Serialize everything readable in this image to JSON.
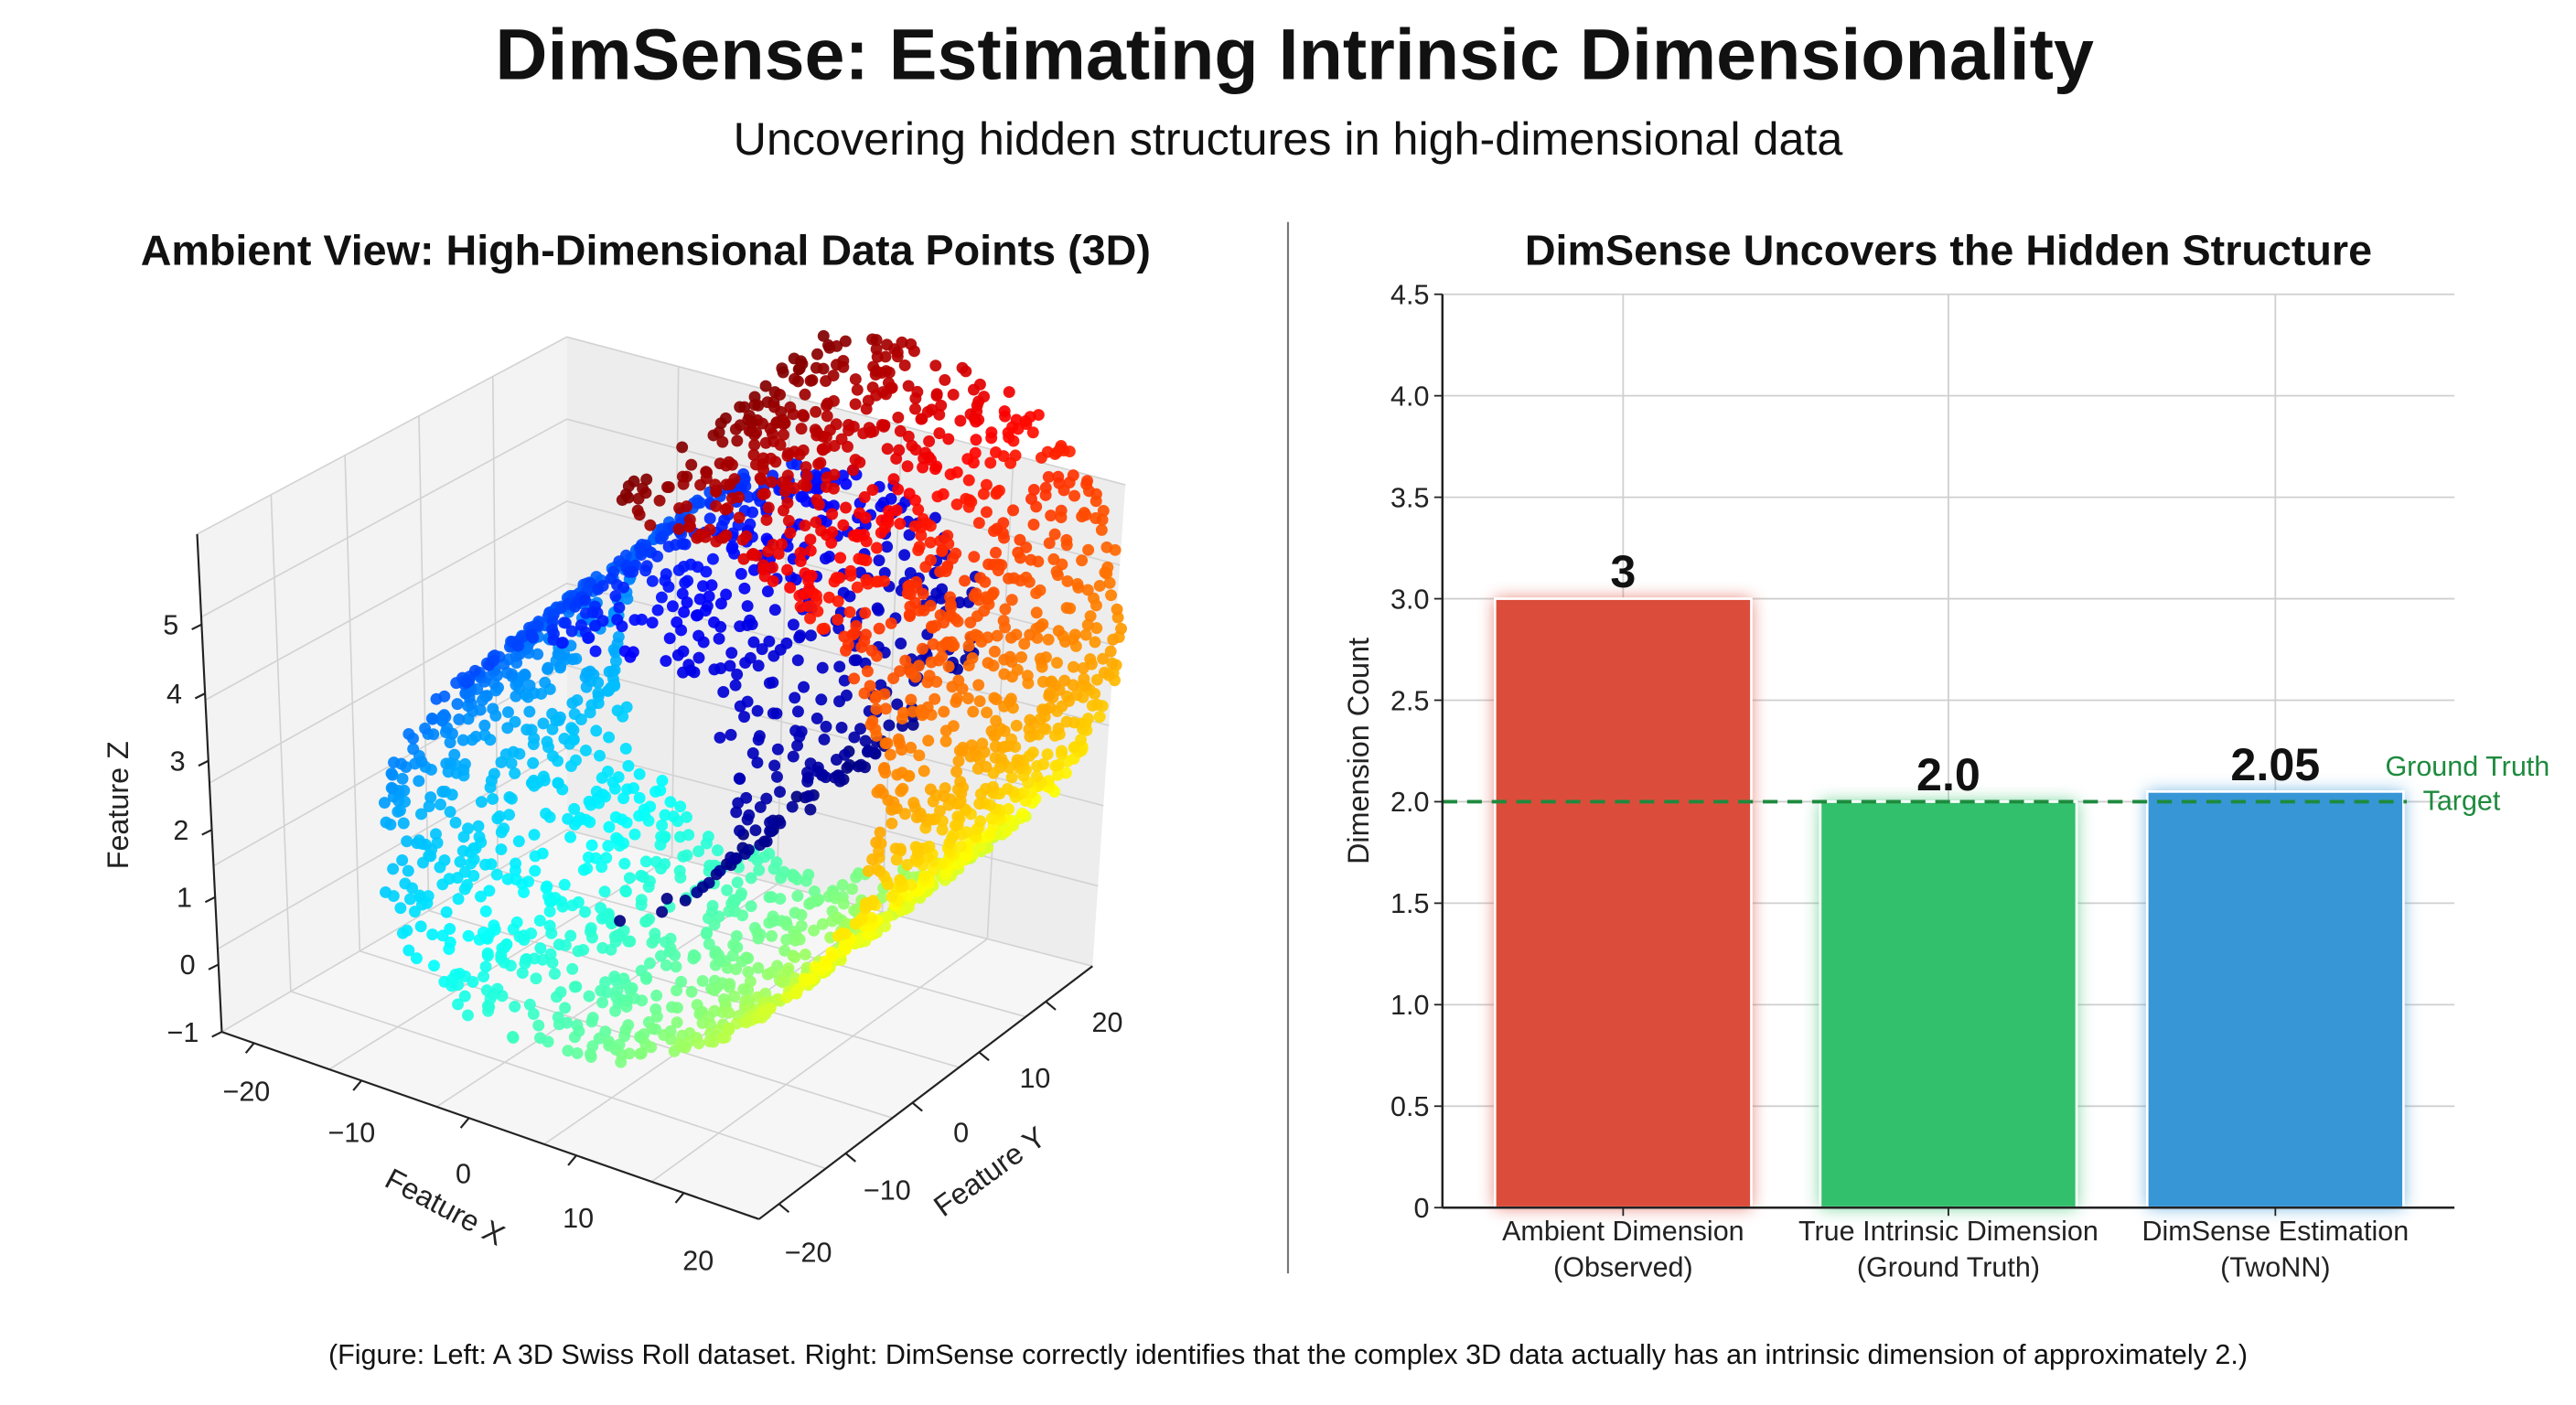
{
  "header": {
    "title": "DimSense: Estimating Intrinsic Dimensionality",
    "subtitle": "Uncovering hidden structures in high-dimensional data"
  },
  "caption": "(Figure: Left: A 3D Swiss Roll dataset. Right: DimSense correctly identifies that the complex 3D data actually has an intrinsic dimension of approximately 2.)",
  "chart_data": [
    {
      "type": "scatter",
      "title": "Ambient View: High-Dimensional Data Points (3D)",
      "xlabel": "Feature X",
      "ylabel": "Feature Y",
      "zlabel": "Feature Z",
      "x_ticks": [
        "−20",
        "−10",
        "0",
        "10",
        "20"
      ],
      "y_ticks": [
        "−20",
        "−10",
        "0",
        "10",
        "20"
      ],
      "z_ticks": [
        "−1",
        "0",
        "1",
        "2",
        "3",
        "4",
        "5"
      ],
      "colormap": "jet",
      "grid": true
    },
    {
      "type": "bar",
      "title": "DimSense Uncovers the Hidden Structure",
      "ylabel": "Dimension Count",
      "xlabel": "",
      "ylim": [
        0,
        4.5
      ],
      "y_ticks": [
        "0",
        "0.5",
        "1.0",
        "1.5",
        "2.0",
        "2.5",
        "3.0",
        "3.5",
        "4.0",
        "4.5"
      ],
      "grid": true,
      "categories": [
        [
          "Ambient Dimension",
          "(Observed)"
        ],
        [
          "True Intrinsic Dimension",
          "(Ground Truth)"
        ],
        [
          "DimSense Estimation",
          "(TwoNN)"
        ]
      ],
      "values": [
        3,
        2.0,
        2.05
      ],
      "value_labels": [
        "3",
        "2.0",
        "2.05"
      ],
      "colors": [
        "#dc4c3a",
        "#33c06c",
        "#3796d6"
      ],
      "reference_line": {
        "value": 2.0,
        "label_lines": [
          "Ground Truth",
          "Target"
        ],
        "color": "#1e8a3e",
        "style": "dashed"
      }
    }
  ]
}
